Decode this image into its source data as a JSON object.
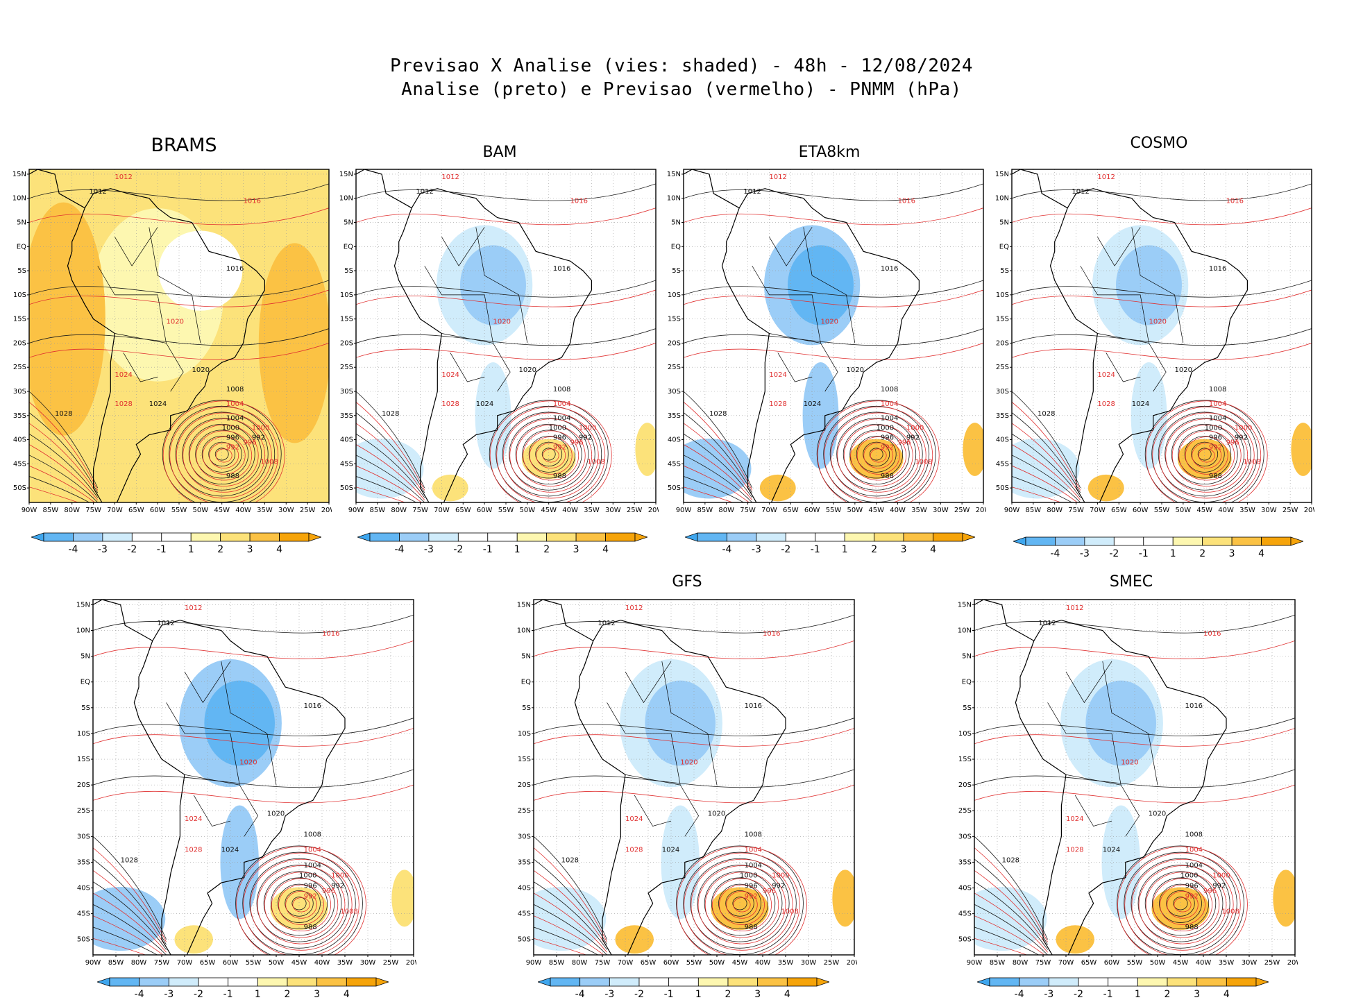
{
  "header": {
    "title_line1": "Previsao X Analise (vies: shaded) - 48h - 12/08/2024",
    "title_line2": "Analise (preto) e Previsao (vermelho) - PNMM (hPa)"
  },
  "lat_labels": [
    "15N",
    "10N",
    "5N",
    "EQ",
    "5S",
    "10S",
    "15S",
    "20S",
    "25S",
    "30S",
    "35S",
    "40S",
    "45S",
    "50S"
  ],
  "lon_labels": [
    "90W",
    "85W",
    "80W",
    "75W",
    "70W",
    "65W",
    "60W",
    "55W",
    "50W",
    "45W",
    "40W",
    "35W",
    "30W",
    "25W",
    "20W"
  ],
  "colorbar": {
    "labels": [
      "-4",
      "-3",
      "-2",
      "-1",
      "1",
      "2",
      "3",
      "4"
    ],
    "colors": {
      "lt4": "#3ea6ee",
      "n4": "#62b6f3",
      "n3": "#9bcdf7",
      "n2": "#d0ecfb",
      "n1": "#ffffff",
      "p1": "#fdf7b0",
      "p2": "#fce27a",
      "p3": "#fbc244",
      "gt4": "#f6a40a"
    }
  },
  "colors": {
    "land_line": "#000000",
    "analysis_contour": "#1a1a1a",
    "forecast_contour": "#e03030",
    "grid": "#9a9a9a"
  },
  "isobar_labels": {
    "analysis": [
      "1012",
      "1016",
      "1020",
      "1024",
      "1028",
      "1008",
      "1004",
      "1000",
      "996",
      "992",
      "988"
    ],
    "forecast": [
      "1012",
      "1016",
      "1020",
      "1024",
      "1008",
      "1004",
      "1000",
      "996",
      "992",
      "1028"
    ]
  },
  "panels": [
    {
      "id": "brams",
      "name": "BRAMS",
      "bias_fill": "#fbc244",
      "bias_fill2": "#fce27a",
      "cold": "#ffffff"
    },
    {
      "id": "bam",
      "name": "BAM",
      "bias_fill": "#9bcdf7",
      "bias_fill2": "#d0ecfb",
      "cold": "#fce27a"
    },
    {
      "id": "eta8km",
      "name": "ETA8km",
      "bias_fill": "#62b6f3",
      "bias_fill2": "#9bcdf7",
      "cold": "#fbc244"
    },
    {
      "id": "cosmo",
      "name": "COSMO",
      "bias_fill": "#9bcdf7",
      "bias_fill2": "#d0ecfb",
      "cold": "#fbc244"
    },
    {
      "id": "unnamed",
      "name": "",
      "bias_fill": "#62b6f3",
      "bias_fill2": "#9bcdf7",
      "cold": "#fce27a"
    },
    {
      "id": "gfs",
      "name": "GFS",
      "bias_fill": "#9bcdf7",
      "bias_fill2": "#d0ecfb",
      "cold": "#fbc244"
    },
    {
      "id": "smec",
      "name": "SMEC",
      "bias_fill": "#9bcdf7",
      "bias_fill2": "#d0ecfb",
      "cold": "#fbc244"
    }
  ]
}
